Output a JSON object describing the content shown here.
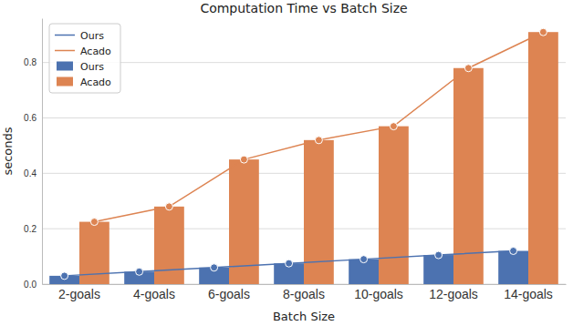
{
  "chart_data": {
    "type": "bar",
    "title": "Computation Time vs Batch Size",
    "x_label": "Batch Size",
    "y_label": "seconds",
    "categories": [
      "2-goals",
      "4-goals",
      "6-goals",
      "8-goals",
      "10-goals",
      "12-goals",
      "14-goals"
    ],
    "series": [
      {
        "name": "Ours",
        "type": "line",
        "color": "#4c72b0",
        "marker": "circle",
        "values": [
          0.03,
          0.045,
          0.06,
          0.075,
          0.09,
          0.105,
          0.12
        ]
      },
      {
        "name": "Acado",
        "type": "line",
        "color": "#dd8452",
        "marker": "circle",
        "values": [
          0.225,
          0.28,
          0.45,
          0.52,
          0.57,
          0.78,
          0.91
        ]
      },
      {
        "name": "Ours",
        "type": "bar",
        "color": "#4c72b0",
        "values": [
          0.03,
          0.045,
          0.06,
          0.075,
          0.09,
          0.105,
          0.12
        ]
      },
      {
        "name": "Acado",
        "type": "bar",
        "color": "#dd8452",
        "values": [
          0.225,
          0.28,
          0.45,
          0.52,
          0.57,
          0.78,
          0.91
        ]
      }
    ],
    "ylim": [
      0,
      0.96
    ],
    "yticks": [
      {
        "value": 0,
        "label": "0.0"
      },
      0.2,
      0.4,
      0.6,
      0.8
    ],
    "grid": true,
    "legend": "upper left"
  }
}
